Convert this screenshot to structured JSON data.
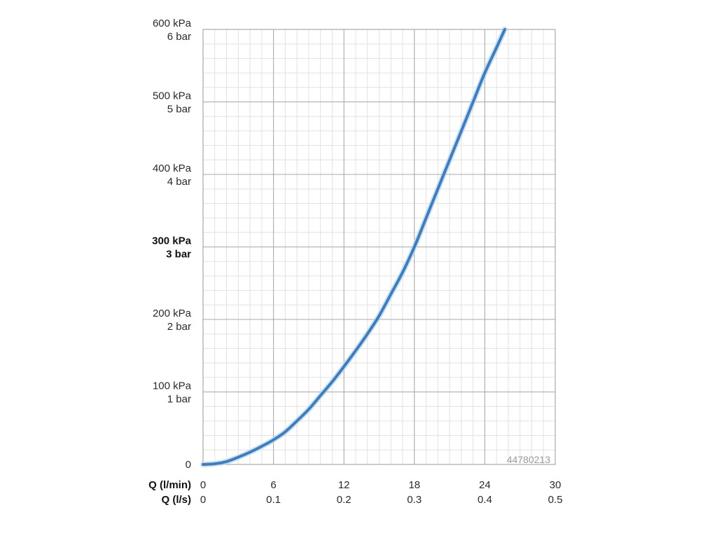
{
  "chart_data": {
    "type": "line",
    "x_unit_primary_label": "Q (l/min)",
    "x_unit_secondary_label": "Q (l/s)",
    "x_ticks_primary": [
      "0",
      "6",
      "12",
      "18",
      "24",
      "30"
    ],
    "x_ticks_secondary": [
      "0",
      "0.1",
      "0.2",
      "0.3",
      "0.4",
      "0.5"
    ],
    "x_tick_values": [
      0,
      6,
      12,
      18,
      24,
      30
    ],
    "xlim": [
      0,
      30
    ],
    "y_ticks": [
      {
        "value": 0,
        "kpa": "0",
        "bar": ""
      },
      {
        "value": 100,
        "kpa": "100 kPa",
        "bar": "1 bar"
      },
      {
        "value": 200,
        "kpa": "200 kPa",
        "bar": "2 bar"
      },
      {
        "value": 300,
        "kpa": "300 kPa",
        "bar": "3 bar",
        "bold": true
      },
      {
        "value": 400,
        "kpa": "400 kPa",
        "bar": "4 bar"
      },
      {
        "value": 500,
        "kpa": "500 kPa",
        "bar": "5 bar"
      },
      {
        "value": 600,
        "kpa": "600 kPa",
        "bar": "6 bar"
      }
    ],
    "ylim": [
      0,
      600
    ],
    "grid": true,
    "series": [
      {
        "color": "#3a7fc0",
        "x": [
          0,
          1,
          2,
          3,
          4,
          5,
          6,
          7,
          8,
          9,
          10,
          11,
          12,
          13,
          14,
          15,
          16,
          17,
          18,
          19,
          20,
          21,
          22,
          23,
          24,
          25,
          25.7
        ],
        "y": [
          0,
          1,
          4,
          10,
          17,
          25,
          34,
          45,
          60,
          76,
          95,
          114,
          135,
          157,
          180,
          205,
          235,
          265,
          300,
          340,
          380,
          420,
          460,
          500,
          540,
          575,
          600
        ]
      }
    ],
    "annotation": "44780213"
  }
}
